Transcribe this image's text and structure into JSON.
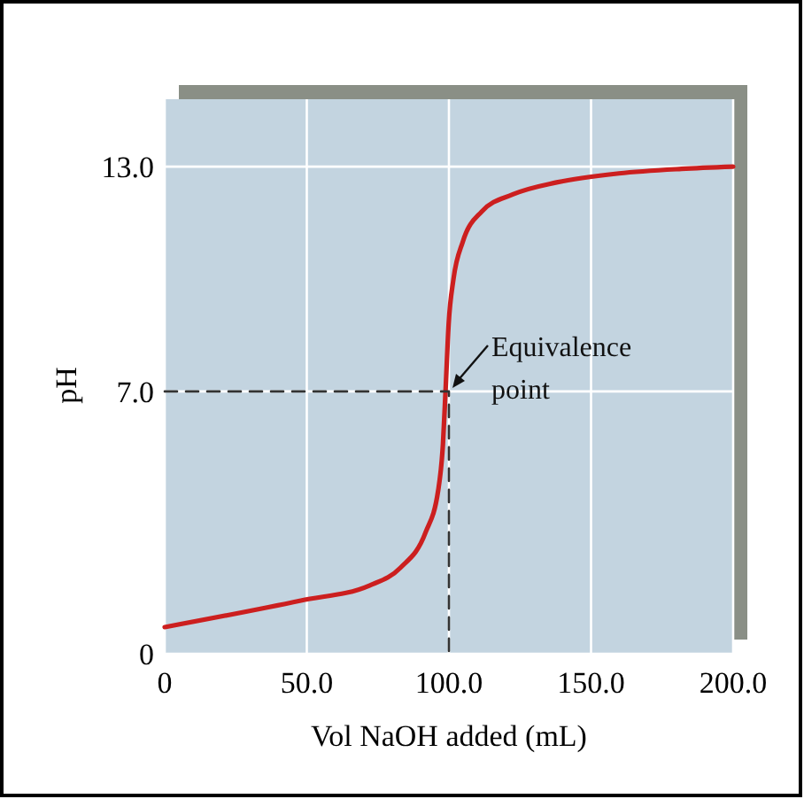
{
  "chart_data": {
    "type": "line",
    "xlabel": "Vol NaOH added (mL)",
    "ylabel": "pH",
    "xlim": [
      0,
      200
    ],
    "ylim": [
      0,
      14.8
    ],
    "xticks": [
      0,
      {
        "value": 50,
        "label": "50.0"
      },
      {
        "value": 100,
        "label": "100.0"
      },
      {
        "value": 150,
        "label": "150.0"
      },
      {
        "value": 200,
        "label": "200.0"
      }
    ],
    "yticks": [
      0,
      {
        "value": 7,
        "label": "7.0"
      },
      {
        "value": 13,
        "label": "13.0"
      }
    ],
    "grid": true,
    "line_style": "solid",
    "marker": "none",
    "series": [
      {
        "color": "#cc1f1f",
        "x": [
          0,
          47.9,
          72,
          83,
          91.8,
          96.2,
          97.9,
          98.8,
          99.9,
          101.6,
          104.9,
          111.5,
          122.5,
          137.9,
          159.8,
          181.8,
          200
        ],
        "values": [
          0.71,
          1.42,
          1.82,
          2.3,
          3.24,
          4.35,
          5.6,
          7.0,
          8.8,
          10.0,
          11.0,
          11.8,
          12.26,
          12.58,
          12.82,
          12.94,
          13.0
        ]
      },
      {
        "color": "#333333",
        "line_style": "dashed",
        "x": [
          0,
          100,
          100
        ],
        "values": [
          7,
          7,
          0
        ]
      }
    ],
    "annotations": [
      {
        "text": "Equivalence point",
        "x": 100,
        "y": 7
      }
    ]
  }
}
